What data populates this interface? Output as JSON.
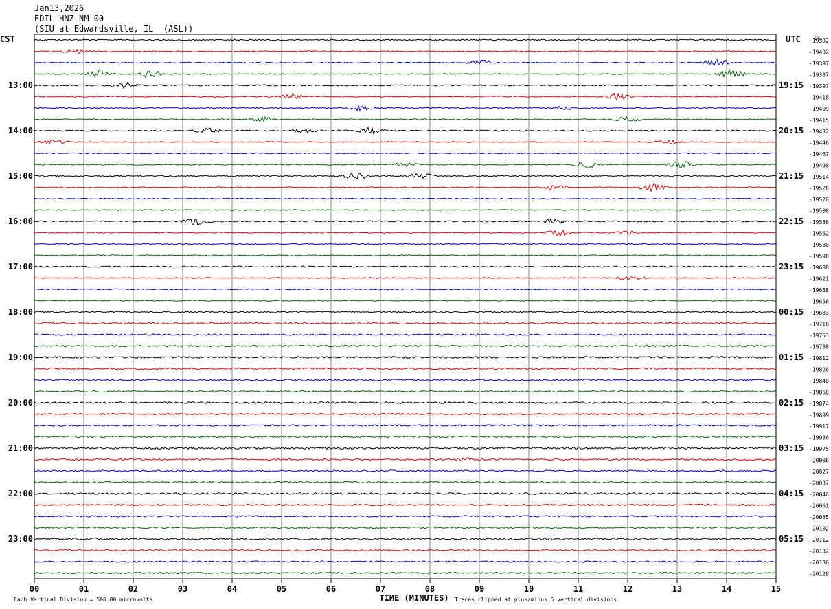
{
  "header": {
    "date": "Jan13,2026",
    "station": "EDIL HNZ NM 00",
    "location": "(SIU at Edwardsville, IL  (ASL))"
  },
  "chart_data": {
    "type": "line",
    "title": "EDIL HNZ NM 00",
    "left_axis_label": "CST",
    "right_axis_label": "UTC",
    "dc_label": "DC",
    "xlabel": "TIME (MINUTES)",
    "xlim": [
      0,
      15
    ],
    "x_ticks": [
      "00",
      "01",
      "02",
      "03",
      "04",
      "05",
      "06",
      "07",
      "08",
      "09",
      "10",
      "11",
      "12",
      "13",
      "14",
      "15"
    ],
    "trace_colors": [
      "#000000",
      "#e00000",
      "#0000c8",
      "#006400"
    ],
    "left_hour_labels": [
      "13:00",
      "14:00",
      "15:00",
      "16:00",
      "17:00",
      "18:00",
      "19:00",
      "20:00",
      "21:00",
      "22:00",
      "23:00"
    ],
    "right_hour_labels": [
      "19:15",
      "20:15",
      "21:15",
      "22:15",
      "23:15",
      "00:15",
      "01:15",
      "02:15",
      "03:15",
      "04:15",
      "05:15"
    ],
    "first_labeled_trace": 4,
    "dc_offsets": [
      "-19392",
      "-19402",
      "-19397",
      "-19387",
      "-19397",
      "-19418",
      "-19409",
      "-19415",
      "-19432",
      "-19446",
      "-19467",
      "-19490",
      "-19514",
      "-19528",
      "-19526",
      "-19508",
      "-19536",
      "-19562",
      "-19580",
      "-19590",
      "-19608",
      "-19621",
      "-19638",
      "-19656",
      "-19683",
      "-19718",
      "-19753",
      "-19788",
      "-19812",
      "-19826",
      "-19848",
      "-19868",
      "-19874",
      "-19899",
      "-19917",
      "-19936",
      "-19975",
      "-20006",
      "-20027",
      "-20037",
      "-20046",
      "-20061",
      "-20085",
      "-20102",
      "-20112",
      "-20132",
      "-20136",
      "-20128"
    ],
    "footer_left": "Each Vertical Division =  500.00 microvolts",
    "footer_right": "Traces clipped at plus/minus 5 vertical divisions",
    "events": [
      {
        "trace": 1,
        "minute": 0.8,
        "amp": 5
      },
      {
        "trace": 2,
        "minute": 9.0,
        "amp": 4
      },
      {
        "trace": 2,
        "minute": 13.8,
        "amp": 5
      },
      {
        "trace": 3,
        "minute": 1.3,
        "amp": 6
      },
      {
        "trace": 3,
        "minute": 2.3,
        "amp": 7
      },
      {
        "trace": 3,
        "minute": 14.1,
        "amp": 8
      },
      {
        "trace": 4,
        "minute": 1.8,
        "amp": 6
      },
      {
        "trace": 5,
        "minute": 5.2,
        "amp": 5
      },
      {
        "trace": 5,
        "minute": 11.8,
        "amp": 6
      },
      {
        "trace": 6,
        "minute": 6.6,
        "amp": 5
      },
      {
        "trace": 6,
        "minute": 10.7,
        "amp": 4
      },
      {
        "trace": 7,
        "minute": 4.6,
        "amp": 5
      },
      {
        "trace": 7,
        "minute": 12.0,
        "amp": 5
      },
      {
        "trace": 8,
        "minute": 3.5,
        "amp": 5
      },
      {
        "trace": 8,
        "minute": 5.5,
        "amp": 4
      },
      {
        "trace": 8,
        "minute": 6.8,
        "amp": 6
      },
      {
        "trace": 9,
        "minute": 0.4,
        "amp": 4
      },
      {
        "trace": 9,
        "minute": 12.8,
        "amp": 4
      },
      {
        "trace": 11,
        "minute": 7.5,
        "amp": 4
      },
      {
        "trace": 11,
        "minute": 11.2,
        "amp": 6
      },
      {
        "trace": 11,
        "minute": 13.1,
        "amp": 9
      },
      {
        "trace": 12,
        "minute": 6.5,
        "amp": 6
      },
      {
        "trace": 12,
        "minute": 7.8,
        "amp": 5
      },
      {
        "trace": 13,
        "minute": 10.5,
        "amp": 5
      },
      {
        "trace": 13,
        "minute": 12.5,
        "amp": 7
      },
      {
        "trace": 16,
        "minute": 3.3,
        "amp": 6
      },
      {
        "trace": 16,
        "minute": 10.5,
        "amp": 5
      },
      {
        "trace": 17,
        "minute": 10.6,
        "amp": 6
      },
      {
        "trace": 17,
        "minute": 12.0,
        "amp": 3
      },
      {
        "trace": 21,
        "minute": 12.1,
        "amp": 5
      },
      {
        "trace": 37,
        "minute": 8.8,
        "amp": 3
      }
    ]
  }
}
